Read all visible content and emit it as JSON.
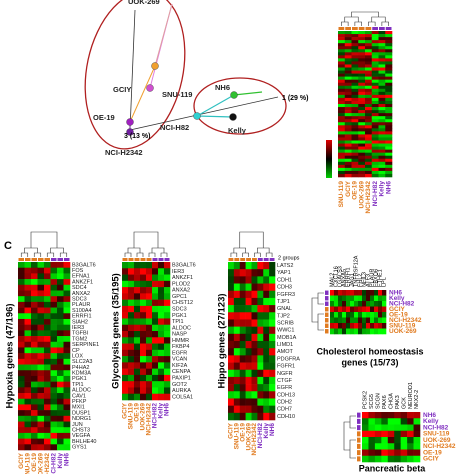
{
  "panel_b": {
    "pca_points": [
      {
        "name": "UOK-269",
        "color": "#b8860b"
      },
      {
        "name": "GCIY",
        "color": "#d04fd0"
      },
      {
        "name": "SNU-119",
        "color": "#f0a030"
      },
      {
        "name": "OE-19",
        "color": "#a020c0"
      },
      {
        "name": "NCI-H2342",
        "color": "#7020a0"
      },
      {
        "name": "NH6",
        "color": "#30c030"
      },
      {
        "name": "NCI-H82",
        "color": "#30d0d0"
      },
      {
        "name": "Kelly",
        "color": "#111111"
      }
    ],
    "axis_labels": [
      "1 (29 %)",
      "3 (13 %)"
    ],
    "heatmap_columns": [
      "SNU-119",
      "GCIY",
      "OE-19",
      "UOK-269",
      "NCI-H2342",
      "NCI-H82",
      "Kelly",
      "NH6"
    ],
    "heatmap_column_colors": [
      "#e07b20",
      "#e07b20",
      "#e07b20",
      "#e07b20",
      "#e07b20",
      "#8030c0",
      "#8030c0",
      "#8030c0"
    ]
  },
  "panel_c": {
    "letter": "C",
    "groups_label": "2 groups",
    "heatmaps": [
      {
        "title": "Hypoxia genes (47/196)",
        "genes": [
          "B3GALT6",
          "FOS",
          "EFNA1",
          "ANKZF1",
          "SDC4",
          "ANXA2",
          "SDC3",
          "PLAUR",
          "S100A4",
          "ERRFI1",
          "SIAH2",
          "IER3",
          "TGFBI",
          "TGM2",
          "SERPINE1",
          "CP",
          "LOX",
          "SLC2A3",
          "P4HA2",
          "KDM3A",
          "PGK1",
          "TPI1",
          "ALDOC",
          "CAV1",
          "PFKP",
          "MXI1",
          "DUSP1",
          "NDRG1",
          "JUN",
          "CHST3",
          "VEGFA",
          "BHLHE40",
          "GYS1"
        ],
        "columns": [
          "GCIY",
          "SNU-119",
          "OE-19",
          "UOK-269",
          "NCI-H2342",
          "NCI-H82",
          "Kelly",
          "NH6"
        ]
      },
      {
        "title": "Glycolysis genes (35/195)",
        "genes": [
          "B3GALT6",
          "IER3",
          "ANKZF1",
          "PLOD2",
          "ANXA2",
          "GPC1",
          "CHST12",
          "SDC3",
          "PGK1",
          "TPI1",
          "ALDOC",
          "NASP",
          "HMMR",
          "FKBP4",
          "EGFR",
          "VCAN",
          "KIF2A",
          "CENPA",
          "PAXIP1",
          "GOT2",
          "AURKA",
          "COL5A1"
        ],
        "columns": [
          "GCIY",
          "SNU-119",
          "OE-19",
          "UOK-269",
          "NCI-H2342",
          "NCI-H82",
          "Kelly",
          "NH6"
        ]
      },
      {
        "title": "Hippo genes (27/123)",
        "genes": [
          "LATS2",
          "YAP1",
          "CDH1",
          "CDH3",
          "FGFR3",
          "TJP1",
          "GNAL",
          "TJP2",
          "SCRIB",
          "WWC1",
          "MOB1A",
          "LIMD1",
          "AMOT",
          "PDGFRA",
          "FGFR1",
          "NGFR",
          "CTGF",
          "EGFR",
          "CDH13",
          "CDH2",
          "CDH7",
          "CDH10"
        ],
        "columns": [
          "GCIY",
          "SNU-119",
          "OE-19",
          "UOK-269",
          "NCI-H2342",
          "NCI-H82",
          "Kelly",
          "NH6"
        ]
      }
    ],
    "cholesterol": {
      "title_lines": [
        "Cholesterol homeostasis",
        "genes (15/73)"
      ],
      "genes": [
        "MAL2",
        "CXCL16",
        "LGALS3",
        "ANXA5",
        "ERRFI1",
        "JAG1",
        "TNFRSF12A",
        "FHL2",
        "NFIL3",
        "ATF3",
        "PLAUR",
        "FBXO6",
        "ETHE1",
        "LPL"
      ],
      "rows": [
        "NH6",
        "Kelly",
        "NCI-H82",
        "GCIY",
        "OE-19",
        "NCI-H2342",
        "SNU-119",
        "UOK-269"
      ],
      "row_colors": [
        "#8030c0",
        "#8030c0",
        "#8030c0",
        "#e07b20",
        "#e07b20",
        "#e07b20",
        "#e07b20",
        "#e07b20"
      ]
    },
    "pancreatic": {
      "title": "Pancreatic beta",
      "genes": [
        "PCSK2",
        "SCG5",
        "SCGN",
        "PAX6",
        "CHGA",
        "PAK3",
        "GCK",
        "NEUROD1",
        "NKX2-2"
      ],
      "rows": [
        "NH6",
        "Kelly",
        "NCI-H82",
        "SNU-119",
        "UOK-269",
        "NCI-H2342",
        "OE-19",
        "GCIY"
      ],
      "row_colors": [
        "#8030c0",
        "#8030c0",
        "#8030c0",
        "#e07b20",
        "#e07b20",
        "#e07b20",
        "#e07b20",
        "#e07b20"
      ]
    }
  }
}
